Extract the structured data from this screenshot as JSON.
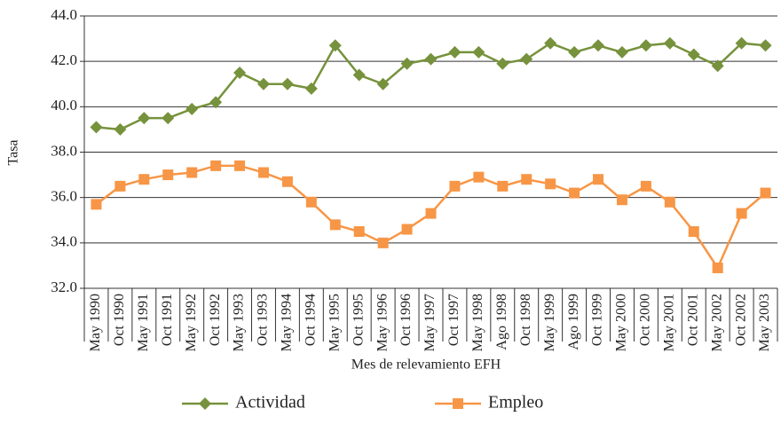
{
  "chart_data": {
    "type": "line",
    "y_label": "Tasa",
    "x_label": "Mes de relevamiento EFH",
    "categories": [
      "May 1990",
      "Oct 1990",
      "May 1991",
      "Oct 1991",
      "May 1992",
      "Oct 1992",
      "May 1993",
      "Oct 1993",
      "May 1994",
      "Oct 1994",
      "May 1995",
      "Oct 1995",
      "May 1996",
      "Oct 1996",
      "May 1997",
      "Oct 1997",
      "May 1998",
      "Ago 1998",
      "Oct 1998",
      "May 1999",
      "Ago 1999",
      "Oct 1999",
      "May 2000",
      "Oct 2000",
      "May 2001",
      "Oct 2001",
      "May 2002",
      "Oct 2002",
      "May 2003"
    ],
    "series": [
      {
        "name": "Actividad",
        "color": "#76923c",
        "marker": "diamond",
        "values": [
          39.1,
          39.0,
          39.5,
          39.5,
          39.9,
          40.2,
          41.5,
          41.0,
          41.0,
          40.8,
          42.7,
          41.4,
          41.0,
          41.9,
          42.1,
          42.4,
          42.4,
          41.9,
          42.1,
          42.8,
          42.4,
          42.7,
          42.4,
          42.7,
          42.8,
          42.3,
          41.8,
          42.8,
          42.7
        ]
      },
      {
        "name": "Empleo",
        "color": "#f79646",
        "marker": "square",
        "values": [
          35.7,
          36.5,
          36.8,
          37.0,
          37.1,
          37.4,
          37.4,
          37.1,
          36.7,
          35.8,
          34.8,
          34.5,
          34.0,
          34.6,
          35.3,
          36.5,
          36.9,
          36.5,
          36.8,
          36.6,
          36.2,
          36.8,
          35.9,
          36.5,
          35.8,
          34.5,
          32.9,
          35.3,
          36.2
        ]
      }
    ],
    "ylim": [
      32,
      44
    ],
    "yticks": [
      {
        "value": 32,
        "label": "32.0"
      },
      {
        "value": 34,
        "label": "34.0"
      },
      {
        "value": 36,
        "label": "36.0"
      },
      {
        "value": 38,
        "label": "38.0"
      },
      {
        "value": 40,
        "label": "40.0"
      },
      {
        "value": 42,
        "label": "42.0"
      },
      {
        "value": 44,
        "label": "44.0"
      }
    ],
    "grid": true,
    "legend": "bottom"
  }
}
